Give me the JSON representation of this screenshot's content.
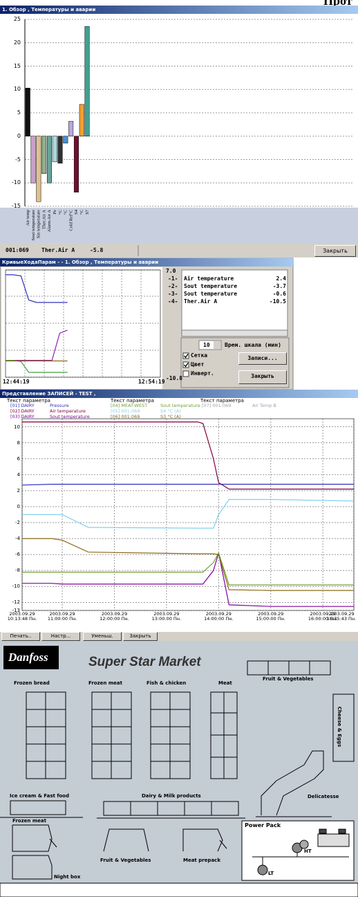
{
  "top_fragment": "Прот",
  "window1": {
    "title": "1. Обзор , Температуры и аварии",
    "status": {
      "id": "001:069",
      "name": "Ther.Air A",
      "value": -5.8
    },
    "close": "Закрыть"
  },
  "window2": {
    "title": "КривыеХодаПарам - - 1. Обзор , Температуры и аварии",
    "scale_value": 10,
    "scale_label": "Врем. шкала (мин)",
    "checks": [
      {
        "label": "Сетка",
        "checked": true
      },
      {
        "label": "Цвет",
        "checked": true
      },
      {
        "label": "Инверт.",
        "checked": false
      }
    ],
    "records": "Записи...",
    "close": "Закрыть"
  },
  "window3": {
    "title": "Представление ЗАПИСЕЙ - TEST ,",
    "column_headers": [
      "Текст параметра",
      "Текст параметра",
      "Текст параметра"
    ],
    "toolbar": [
      "Печать..",
      "Настр...",
      "Уменьш.",
      "Закрыть"
    ]
  },
  "chart_data": [
    {
      "type": "bar",
      "categories": [
        "Air temp",
        "Sout temperature",
        "Sin temperature",
        "Ther.Air A",
        "Alarm Air A",
        "Pe",
        "°C",
        "°C",
        "Cold Ref°C",
        "S4",
        "°C",
        "S7"
      ],
      "values": [
        10.3,
        -10,
        -14,
        -8,
        -10,
        -5.5,
        -5.8,
        -1.5,
        3.2,
        -12,
        6.8,
        23.5
      ],
      "colors": [
        "#101010",
        "#c8a0c8",
        "#e0c090",
        "#8fb08f",
        "#6aa49a",
        "#a8d8e0",
        "#303030",
        "#4a90d0",
        "#b8a8e0",
        "#701030",
        "#f0a030",
        "#40a090"
      ],
      "ylim": [
        -15,
        25
      ],
      "yticks": [
        -15,
        -10,
        -5,
        0,
        5,
        10,
        15,
        20,
        25
      ],
      "grid": true
    },
    {
      "type": "line",
      "categories": [
        "12:44:19",
        null,
        null,
        null,
        null,
        null,
        null,
        null,
        null,
        null,
        null,
        null,
        null,
        null,
        null,
        null,
        null,
        null,
        null,
        null,
        "12:54:19"
      ],
      "ylim": [
        -10.8,
        7
      ],
      "yticks": [
        {
          "value": 7,
          "label": "7.0"
        },
        {
          "value": -10.8,
          "label": "-10.8"
        }
      ],
      "grid": true,
      "series": [
        {
          "marker": "-1-",
          "name": "Air temperature",
          "current": 2.4,
          "color": "#3030c0",
          "values": [
            6.2,
            6.2,
            6.0,
            2.0,
            1.6,
            1.6,
            1.6,
            1.6,
            1.6,
            null,
            null,
            null,
            null,
            null,
            null,
            null,
            null,
            null,
            null,
            null,
            null
          ]
        },
        {
          "marker": "-2-",
          "name": "Sout temperature",
          "current": -3.7,
          "color": "#9020b0",
          "values": [
            -8,
            -8,
            -8,
            -8,
            -8,
            -8,
            -8,
            -3.5,
            -3.0,
            null,
            null,
            null,
            null,
            null,
            null,
            null,
            null,
            null,
            null,
            null,
            null
          ]
        },
        {
          "marker": "-3-",
          "name": "Sout temperature",
          "current": -0.6,
          "color": "#40a040",
          "values": [
            -8,
            -8,
            -8.2,
            -10,
            -10,
            -10,
            -10,
            -10,
            -10,
            null,
            null,
            null,
            null,
            null,
            null,
            null,
            null,
            null,
            null,
            null,
            null
          ]
        },
        {
          "marker": "-4-",
          "name": "Ther.Air A",
          "current": -10.5,
          "color": "#8b6914",
          "values": [
            -8.1,
            -8.1,
            -8.1,
            -8.1,
            -8.1,
            -8.1,
            -8.1,
            -8.1,
            -8.1,
            null,
            null,
            null,
            null,
            null,
            null,
            null,
            null,
            null,
            null,
            null,
            null
          ]
        }
      ]
    },
    {
      "type": "line",
      "x": [
        10.23,
        10.8,
        11.0,
        11.5,
        13.6,
        13.7,
        13.9,
        14.0,
        14.2,
        15.0,
        16.595
      ],
      "xlim": [
        10.23,
        16.595
      ],
      "xticks": [
        {
          "value": 10.23,
          "label": "2003.09.29 10:13:48 Пн."
        },
        {
          "value": 11,
          "label": "2003.09.29 11:00:00 Пн."
        },
        {
          "value": 12,
          "label": "2003.09.29 12:00:00 Пн."
        },
        {
          "value": 13,
          "label": "2003.09.29 13:00:00 Пн."
        },
        {
          "value": 14,
          "label": "2003.09.29 14:00:00 Пн."
        },
        {
          "value": 15,
          "label": "2003.09.29 15:00:00 Пн."
        },
        {
          "value": 16,
          "label": "2003.09.29 16:00:00 Пн."
        },
        {
          "value": 16.595,
          "label": "2003.09.29 16:35:43 Пн."
        }
      ],
      "ylim": [
        -13,
        11
      ],
      "yticks": [
        10,
        8,
        6,
        4,
        2,
        0,
        -2,
        -4,
        -6,
        -8,
        -10,
        -12,
        -13
      ],
      "grid": true,
      "series": [
        {
          "source": "[01] DAIRY",
          "name": "Pressure",
          "color": "#3030c0",
          "values": [
            2.7,
            2.8,
            2.8,
            2.8,
            2.8,
            2.8,
            2.8,
            2.8,
            2.8,
            2.8,
            2.8
          ]
        },
        {
          "source": "[02] DAIRY",
          "name": "Air temperature",
          "color": "#800040",
          "values": [
            10.6,
            10.6,
            10.6,
            10.6,
            10.6,
            10.4,
            6,
            3,
            2.2,
            2.2,
            2.2
          ]
        },
        {
          "source": "[03] DAIRY",
          "name": "Sout temperature",
          "color": "#8000a0",
          "values": [
            -9.6,
            -9.6,
            -9.7,
            -9.7,
            -9.7,
            -9.7,
            -8,
            -5.8,
            -12.3,
            -12.5,
            -12.5
          ]
        },
        {
          "source": "[04] MEAT-WEST",
          "name": "Sout temperature",
          "color": "#70a030",
          "values": [
            -8.2,
            -8.2,
            -8.2,
            -8.2,
            -8.2,
            -8.2,
            -7,
            -5.8,
            -9.8,
            -9.8,
            -9.8
          ]
        },
        {
          "source": "[05] 001:069",
          "name": "S4 °C (A)",
          "color": "#80d0f0",
          "values": [
            -1,
            -1,
            -1,
            -2.6,
            -2.7,
            -2.7,
            -2.7,
            -1,
            0.9,
            0.9,
            0.7
          ]
        },
        {
          "source": "[06] 001:069",
          "name": "S3 °C (A)",
          "color": "#8b6914",
          "values": [
            -4,
            -4,
            -4.2,
            -5.7,
            -5.9,
            -5.9,
            -5.9,
            -6,
            -10.4,
            -10.5,
            -10.5
          ]
        },
        {
          "source": "[07] 001:069",
          "name": "Air Temp B",
          "color": "#a0a0b0",
          "values": [
            null,
            null,
            null,
            null,
            null,
            null,
            null,
            null,
            null,
            null,
            null
          ]
        }
      ]
    }
  ],
  "store": {
    "logo": "Danfoss",
    "title": "Super Star Market",
    "sections": [
      "Fruit & Vegetables",
      "Frozen bread",
      "Frozen meat",
      "Fish & chicken",
      "Meat",
      "Cheese & Eggs",
      "Ice cream & Fast food",
      "Dairy & Milk products",
      "Delicatesse",
      "Frozen meat",
      "Fruit & Vegetables",
      "Meat prepack",
      "Night box"
    ],
    "power_pack": {
      "title": "Power Pack",
      "labels": [
        "LT",
        "HT"
      ]
    }
  }
}
